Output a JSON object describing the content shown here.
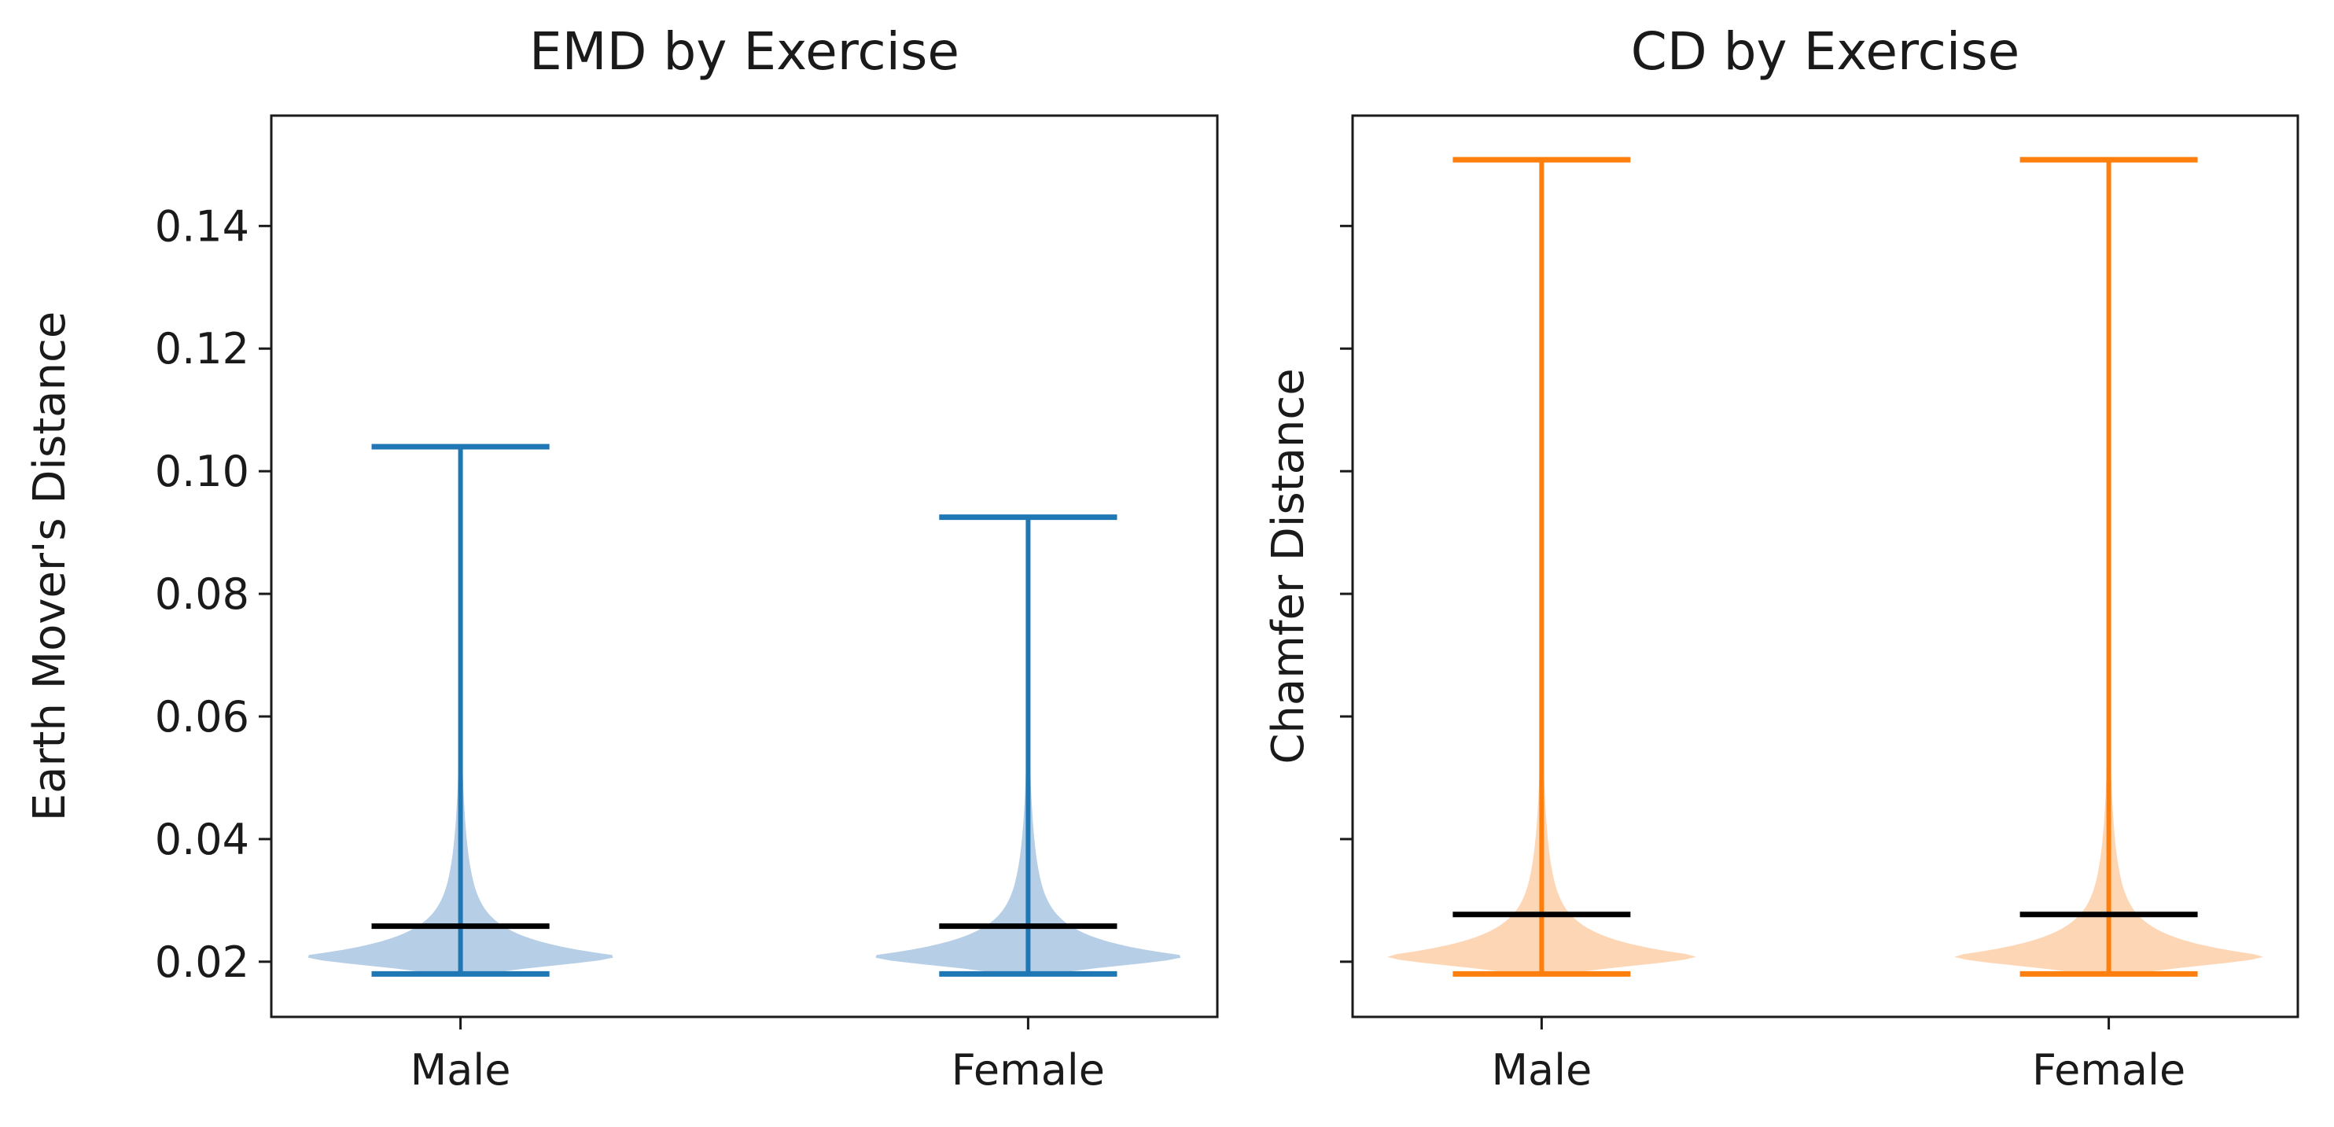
{
  "chart_data": [
    {
      "type": "violin",
      "title": "EMD by Exercise",
      "xlabel": "",
      "ylabel": "Earth Mover's Distance",
      "categories": [
        "Male",
        "Female"
      ],
      "ylim": [
        0.011,
        0.158
      ],
      "yticks": [
        0.02,
        0.04,
        0.06,
        0.08,
        0.1,
        0.12,
        0.14
      ],
      "ytick_labels": [
        "0.02",
        "0.04",
        "0.06",
        "0.08",
        "0.10",
        "0.12",
        "0.14"
      ],
      "grid": false,
      "legend": "none",
      "colors": {
        "line": "#1f77b4",
        "fill": "#a9c6e2",
        "mean": "#000000"
      },
      "violins": [
        {
          "category": "Male",
          "min": 0.018,
          "max": 0.104,
          "mean": 0.0258,
          "density_peak": 0.021
        },
        {
          "category": "Female",
          "min": 0.018,
          "max": 0.0925,
          "mean": 0.0258,
          "density_peak": 0.021
        }
      ]
    },
    {
      "type": "violin",
      "title": "CD by Exercise",
      "xlabel": "",
      "ylabel": "Chamfer Distance",
      "categories": [
        "Male",
        "Female"
      ],
      "ylim": [
        0.011,
        0.158
      ],
      "yticks": [
        0.02,
        0.04,
        0.06,
        0.08,
        0.1,
        0.12,
        0.14
      ],
      "ytick_labels": [],
      "grid": false,
      "legend": "none",
      "colors": {
        "line": "#ff7f0e",
        "fill": "#fdd0a8",
        "mean": "#000000"
      },
      "violins": [
        {
          "category": "Male",
          "min": 0.018,
          "max": 0.1508,
          "mean": 0.0277,
          "density_peak": 0.021
        },
        {
          "category": "Female",
          "min": 0.018,
          "max": 0.1508,
          "mean": 0.0277,
          "density_peak": 0.021
        }
      ]
    }
  ]
}
